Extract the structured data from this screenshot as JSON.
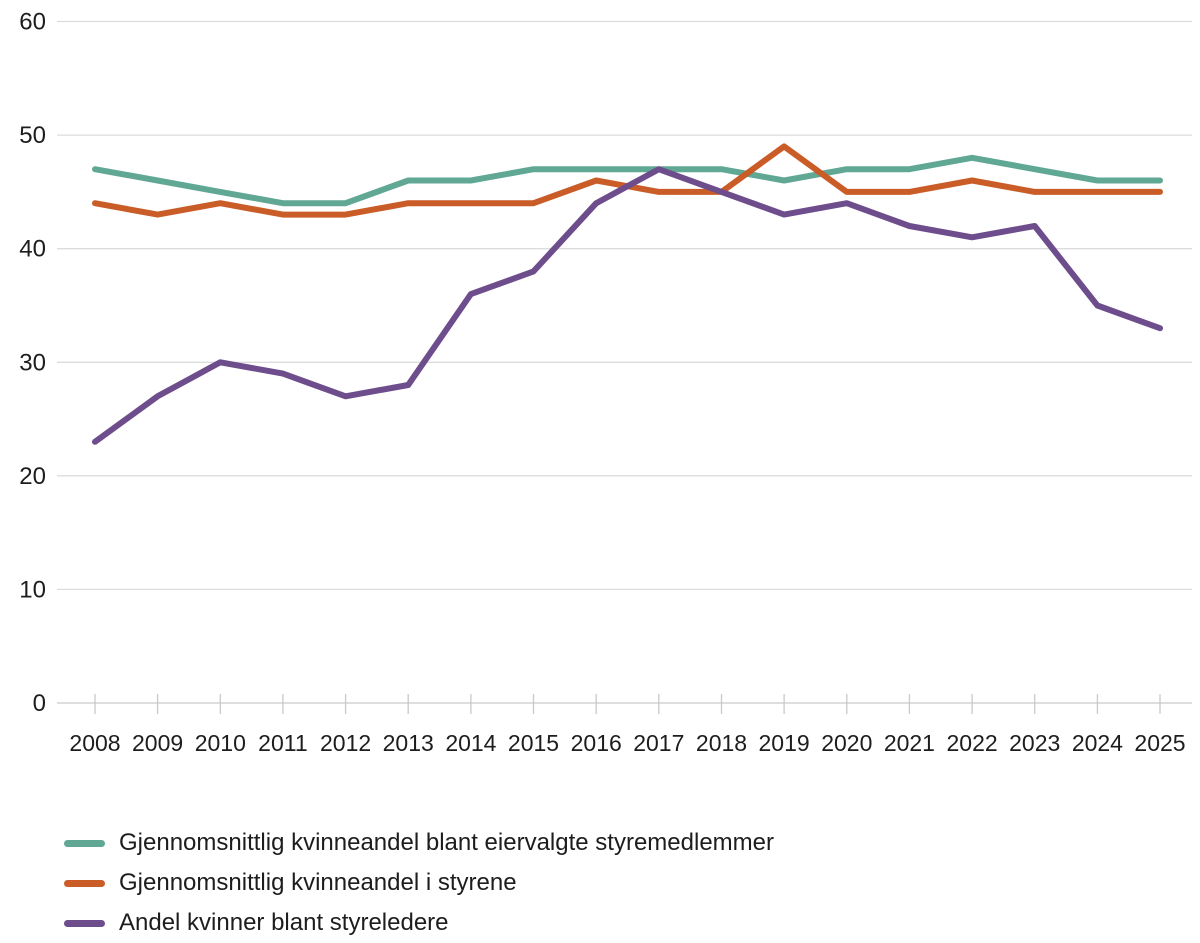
{
  "chart_data": {
    "type": "line",
    "title": "",
    "xlabel": "",
    "ylabel": "",
    "x": [
      2008,
      2009,
      2010,
      2011,
      2012,
      2013,
      2014,
      2015,
      2016,
      2017,
      2018,
      2019,
      2020,
      2021,
      2022,
      2023,
      2024,
      2025
    ],
    "series": [
      {
        "name": "Gjennomsnittlig kvinneandel blant eiervalgte styremedlemmer",
        "color": "#60A794",
        "values": [
          47,
          46,
          45,
          44,
          44,
          46,
          46,
          47,
          47,
          47,
          47,
          46,
          47,
          47,
          48,
          47,
          46,
          46
        ]
      },
      {
        "name": "Gjennomsnittlig kvinneandel i styrene",
        "color": "#CA5C28",
        "values": [
          44,
          43,
          44,
          43,
          43,
          44,
          44,
          44,
          46,
          45,
          45,
          49,
          45,
          45,
          46,
          45,
          45,
          45
        ]
      },
      {
        "name": "Andel kvinner blant styreledere",
        "color": "#6E4D8C",
        "values": [
          23,
          27,
          30,
          29,
          27,
          28,
          36,
          38,
          44,
          47,
          45,
          43,
          44,
          42,
          41,
          42,
          35,
          33
        ]
      }
    ],
    "ylim": [
      0,
      60
    ],
    "yticks": [
      0,
      10,
      20,
      30,
      40,
      50,
      60
    ],
    "grid": true,
    "gridline_color": "#dcdcdc",
    "axis_color": "#c9c9c9",
    "legend_position": "bottom-left"
  }
}
